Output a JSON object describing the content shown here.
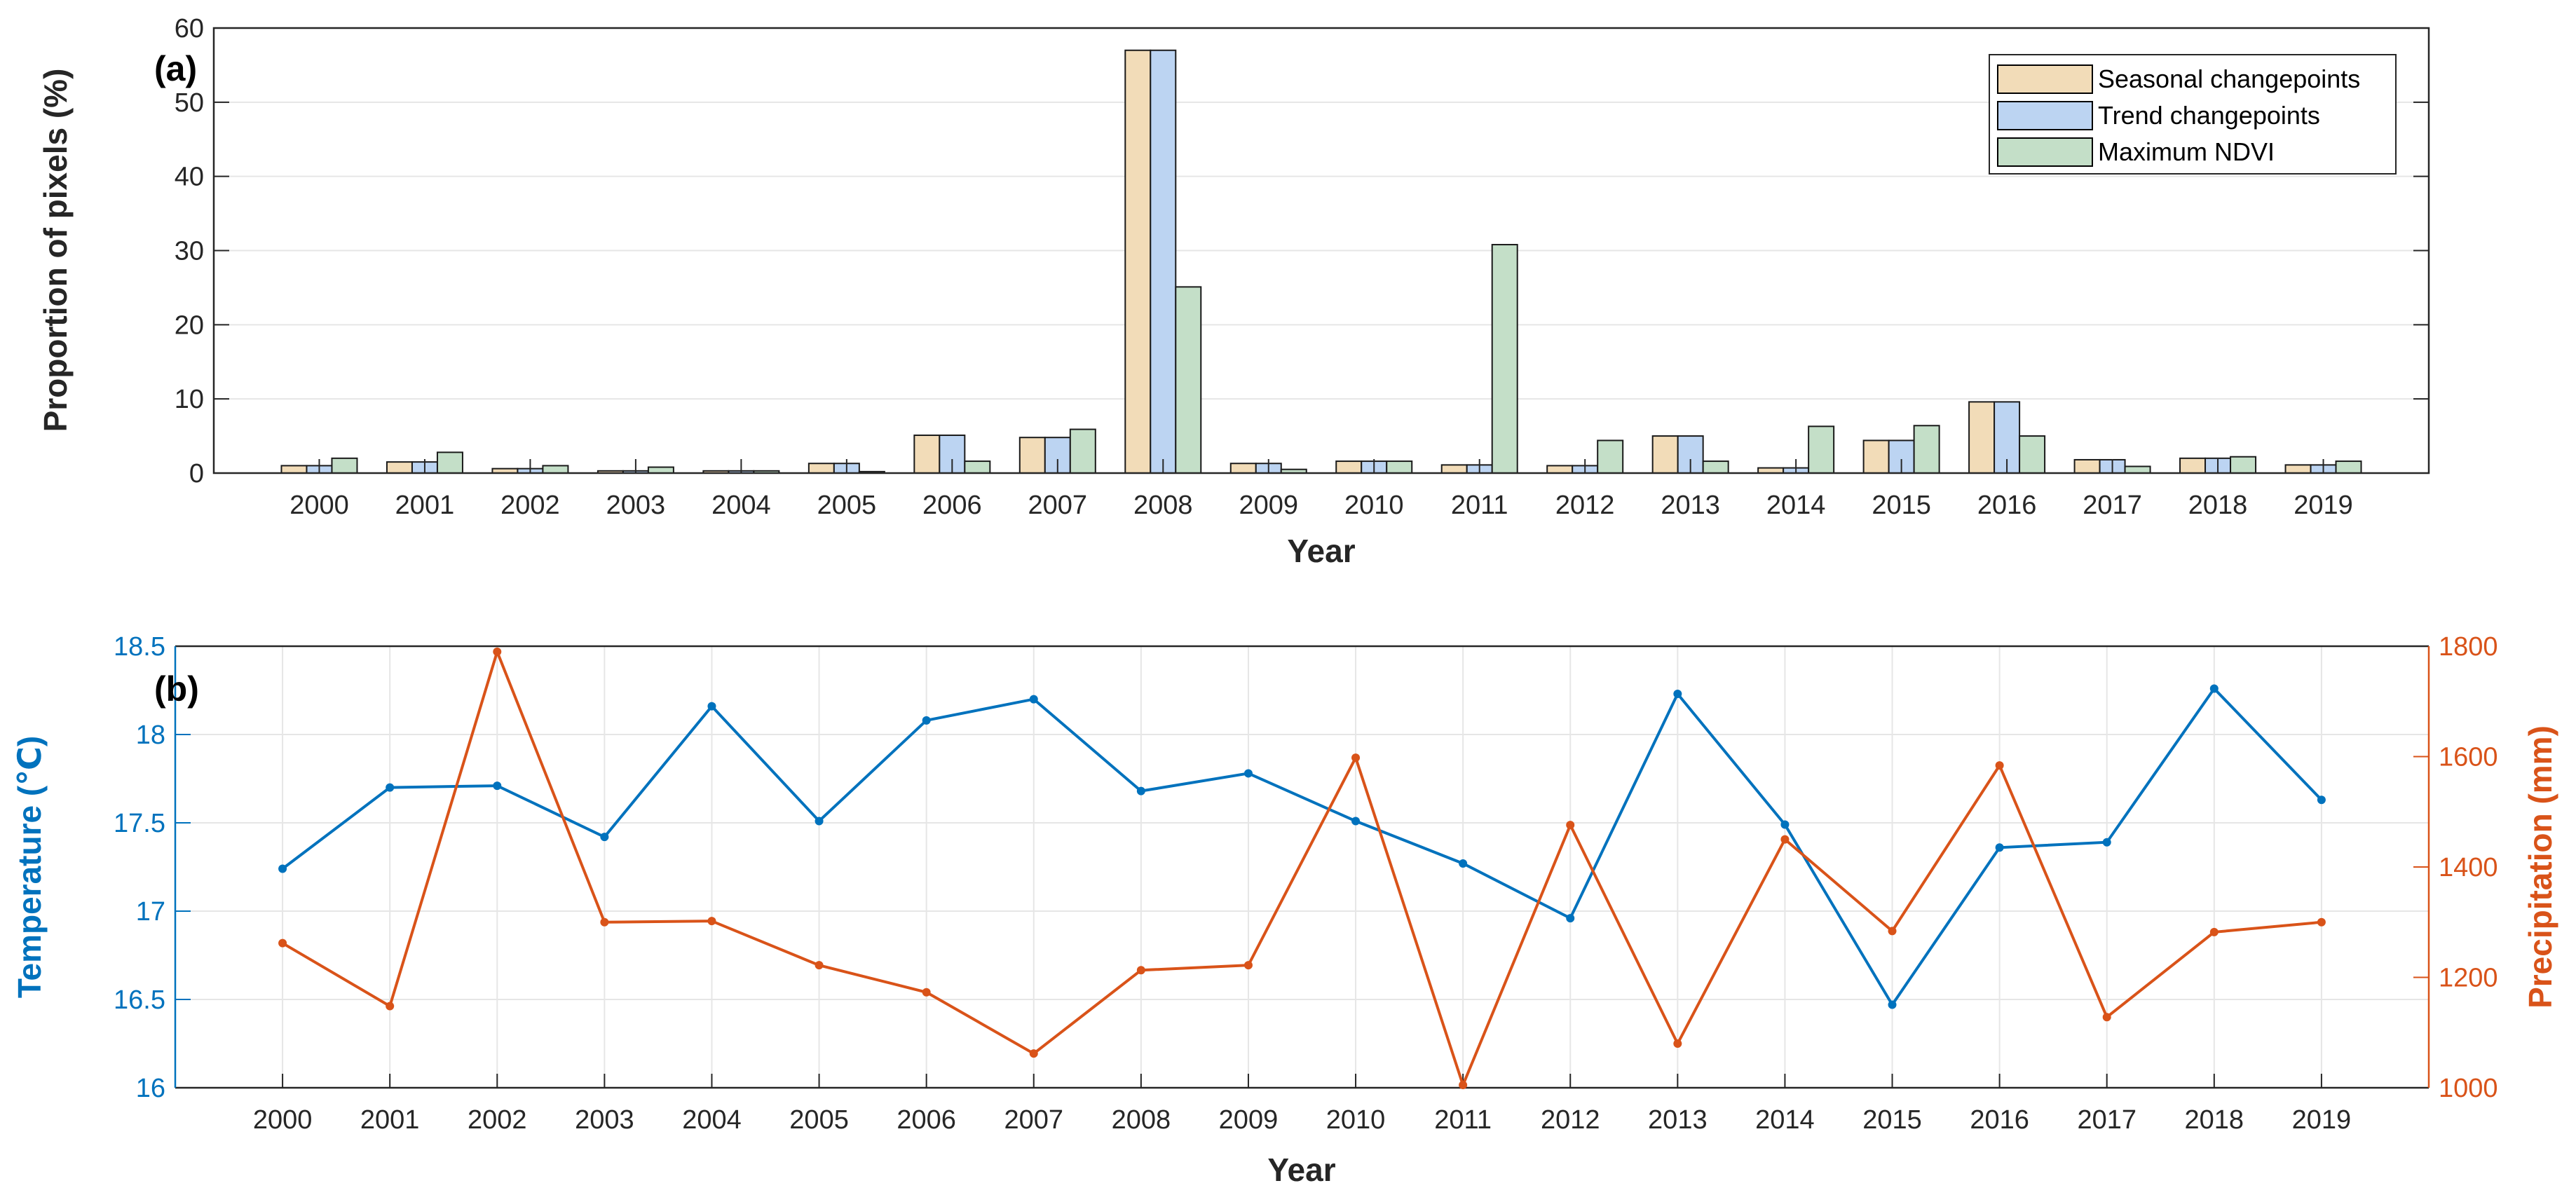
{
  "chart_data": [
    {
      "type": "bar",
      "panel_label": "(a)",
      "categories": [
        "2000",
        "2001",
        "2002",
        "2003",
        "2004",
        "2005",
        "2006",
        "2007",
        "2008",
        "2009",
        "2010",
        "2011",
        "2012",
        "2013",
        "2014",
        "2015",
        "2016",
        "2017",
        "2018",
        "2019"
      ],
      "series": [
        {
          "name": "Seasonal changepoints",
          "color": "#F2DCB8",
          "values": [
            1.0,
            1.5,
            0.6,
            0.3,
            0.3,
            1.3,
            5.1,
            4.8,
            57.0,
            1.3,
            1.6,
            1.1,
            1.0,
            5.0,
            0.7,
            4.4,
            9.6,
            1.8,
            2.0,
            1.1
          ]
        },
        {
          "name": "Trend changepoints",
          "color": "#BCD4F2",
          "values": [
            1.0,
            1.5,
            0.6,
            0.3,
            0.3,
            1.3,
            5.1,
            4.8,
            57.0,
            1.3,
            1.6,
            1.1,
            1.0,
            5.0,
            0.7,
            4.4,
            9.6,
            1.8,
            2.0,
            1.1
          ]
        },
        {
          "name": "Maximum NDVI",
          "color": "#C4DFC8",
          "values": [
            2.0,
            2.8,
            1.0,
            0.8,
            0.3,
            0.2,
            1.6,
            5.9,
            25.1,
            0.5,
            1.6,
            30.8,
            4.4,
            1.6,
            6.3,
            6.4,
            5.0,
            0.9,
            2.2,
            1.6
          ]
        }
      ],
      "xlabel": "Year",
      "ylabel": "Proportion of pixels (%)",
      "ylim": [
        0,
        60
      ],
      "yticks": [
        0,
        10,
        20,
        30,
        40,
        50,
        60
      ],
      "grid": true,
      "legend_position": "top-right"
    },
    {
      "type": "line",
      "panel_label": "(b)",
      "x": [
        "2000",
        "2001",
        "2002",
        "2003",
        "2004",
        "2005",
        "2006",
        "2007",
        "2008",
        "2009",
        "2010",
        "2011",
        "2012",
        "2013",
        "2014",
        "2015",
        "2016",
        "2017",
        "2018",
        "2019"
      ],
      "series": [
        {
          "axis": "left",
          "color": "#0072BD",
          "values": [
            17.24,
            17.7,
            17.71,
            17.42,
            18.16,
            17.51,
            18.08,
            18.2,
            17.68,
            17.78,
            17.51,
            17.27,
            16.96,
            18.23,
            17.49,
            16.47,
            17.36,
            17.39,
            18.26,
            17.63
          ]
        },
        {
          "axis": "right",
          "color": "#D95319",
          "values": [
            1262,
            1148,
            1790,
            1300,
            1302,
            1222,
            1173,
            1062,
            1213,
            1222,
            1598,
            1005,
            1476,
            1080,
            1450,
            1284,
            1584,
            1128,
            1282,
            1300
          ]
        }
      ],
      "xlabel": "Year",
      "ylabel_left": "Temperature (℃)",
      "ylabel_right": "Precipitation (mm)",
      "ylim_left": [
        16,
        18.5
      ],
      "yticks_left": [
        "16",
        "16.5",
        "17",
        "17.5",
        "18",
        "18.5"
      ],
      "ylim_right": [
        1000,
        1800
      ],
      "yticks_right": [
        "1000",
        "1200",
        "1400",
        "1600",
        "1800"
      ],
      "grid": true
    }
  ]
}
